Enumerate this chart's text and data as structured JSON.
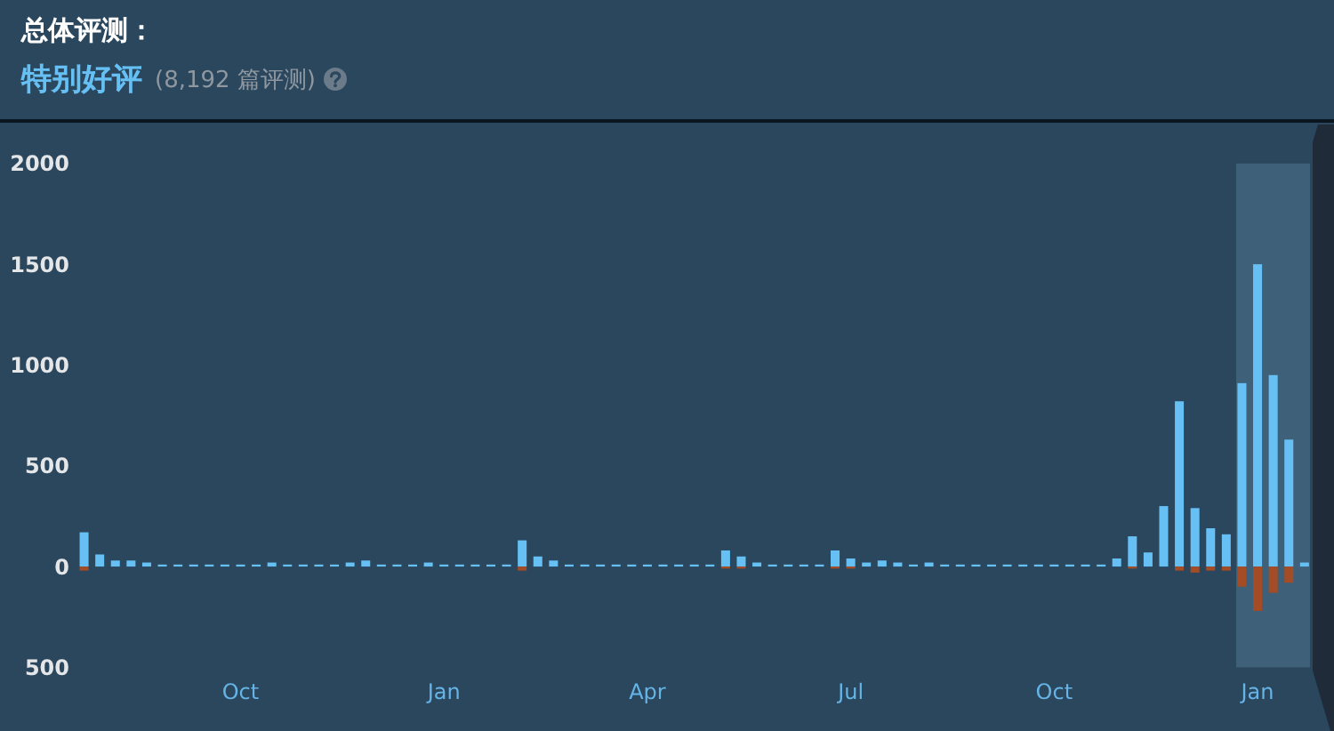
{
  "chart_data": {
    "type": "bar",
    "title": "总体评测：",
    "subtitle": "特别好评",
    "annotations": [
      "(8,192 篇评测)"
    ],
    "categories": [
      null,
      null,
      null,
      null,
      null,
      null,
      null,
      null,
      null,
      null,
      "Oct",
      null,
      null,
      null,
      null,
      null,
      null,
      null,
      null,
      null,
      null,
      null,
      null,
      "Jan",
      null,
      null,
      null,
      null,
      null,
      null,
      null,
      null,
      null,
      null,
      null,
      null,
      "Apr",
      null,
      null,
      null,
      null,
      null,
      null,
      null,
      null,
      null,
      null,
      null,
      null,
      "Jul",
      null,
      null,
      null,
      null,
      null,
      null,
      null,
      null,
      null,
      null,
      null,
      null,
      "Oct",
      null,
      null,
      null,
      null,
      null,
      null,
      null,
      null,
      null,
      null,
      null,
      null,
      "Jan",
      null,
      null,
      null
    ],
    "ylim": [
      -500,
      2000
    ],
    "yticks": [
      {
        "value": -500,
        "label": "500"
      },
      0,
      500,
      1000,
      1500,
      2000
    ],
    "stacked": true,
    "series": [
      {
        "color": "#66c0f4",
        "values": [
          170,
          60,
          30,
          30,
          20,
          10,
          10,
          10,
          10,
          10,
          10,
          10,
          20,
          10,
          10,
          10,
          10,
          20,
          30,
          10,
          10,
          10,
          20,
          10,
          10,
          10,
          10,
          10,
          130,
          50,
          30,
          10,
          10,
          10,
          10,
          10,
          10,
          10,
          10,
          10,
          10,
          80,
          50,
          20,
          10,
          10,
          10,
          10,
          80,
          40,
          20,
          30,
          20,
          10,
          20,
          10,
          10,
          10,
          10,
          10,
          10,
          10,
          10,
          10,
          10,
          10,
          40,
          150,
          70,
          300,
          820,
          290,
          190,
          160,
          910,
          1500,
          950,
          630,
          20
        ]
      },
      {
        "color": "#a34c25",
        "values": [
          -20,
          null,
          null,
          null,
          null,
          null,
          null,
          null,
          null,
          null,
          null,
          null,
          null,
          null,
          null,
          null,
          null,
          null,
          null,
          null,
          null,
          null,
          null,
          null,
          null,
          null,
          null,
          null,
          -20,
          null,
          null,
          null,
          null,
          null,
          null,
          null,
          null,
          null,
          null,
          null,
          null,
          -10,
          -10,
          null,
          null,
          null,
          null,
          null,
          -10,
          -10,
          null,
          null,
          null,
          null,
          null,
          null,
          null,
          null,
          null,
          null,
          null,
          null,
          null,
          null,
          null,
          null,
          null,
          -10,
          null,
          null,
          -20,
          -30,
          -20,
          -20,
          -100,
          -220,
          -130,
          -80,
          null
        ]
      }
    ]
  }
}
